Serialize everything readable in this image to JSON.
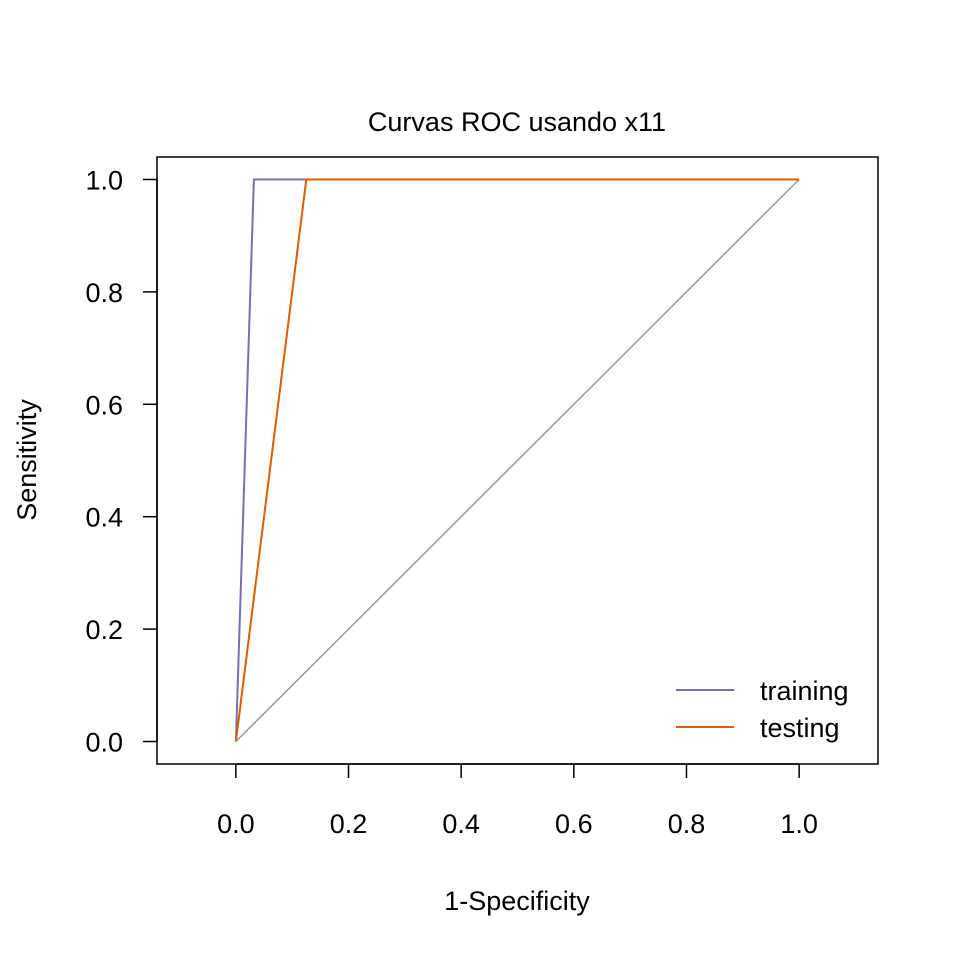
{
  "chart_data": {
    "type": "line",
    "title": "Curvas ROC usando x11",
    "xlabel": "1-Specificity",
    "ylabel": "Sensitivity",
    "xlim": [
      -0.14,
      1.14
    ],
    "ylim": [
      -0.04,
      1.04
    ],
    "xticks": [
      0.0,
      0.2,
      0.4,
      0.6,
      0.8,
      1.0
    ],
    "xtick_labels": [
      "0.0",
      "0.2",
      "0.4",
      "0.6",
      "0.8",
      "1.0"
    ],
    "yticks": [
      0.0,
      0.2,
      0.4,
      0.6,
      0.8,
      1.0
    ],
    "ytick_labels": [
      "0.0",
      "0.2",
      "0.4",
      "0.6",
      "0.8",
      "1.0"
    ],
    "grid": false,
    "legend_position": "bottom-right",
    "series": [
      {
        "name": "training",
        "color": "#7570B3",
        "x": [
          0.0,
          0.032,
          1.0
        ],
        "y": [
          0.0,
          1.0,
          1.0
        ]
      },
      {
        "name": "testing",
        "color": "#D95F02",
        "x": [
          0.0,
          0.125,
          1.0
        ],
        "y": [
          0.0,
          1.0,
          1.0
        ]
      }
    ],
    "reference_line": {
      "color": "#999999",
      "x": [
        0.0,
        1.0
      ],
      "y": [
        0.0,
        1.0
      ]
    }
  }
}
